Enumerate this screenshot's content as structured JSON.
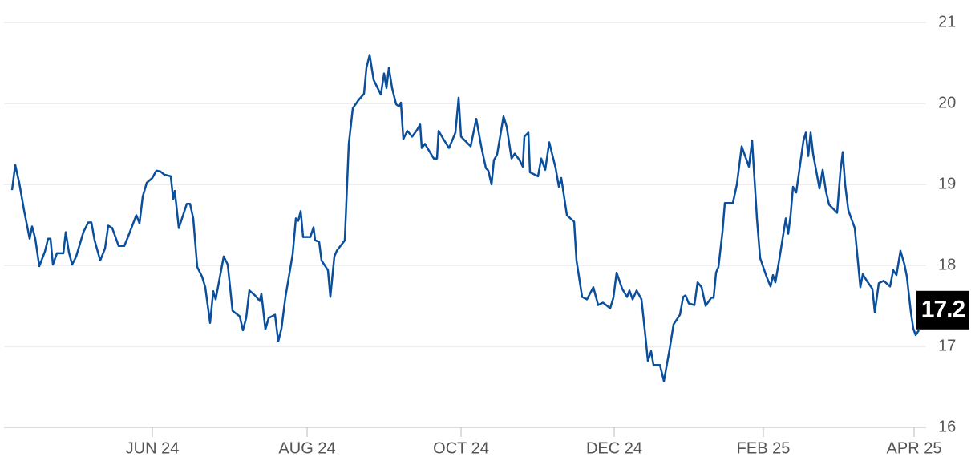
{
  "chart_data": {
    "type": "line",
    "x": [
      10,
      14,
      19,
      25,
      32,
      35,
      39,
      44,
      51,
      55,
      58,
      61,
      66,
      74,
      77,
      81,
      85,
      90,
      99,
      105,
      109,
      113,
      120,
      126,
      130,
      135,
      143,
      150,
      155,
      165,
      169,
      173,
      178,
      185,
      190,
      195,
      200,
      208,
      211,
      213,
      218,
      222,
      228,
      232,
      236,
      241,
      247,
      251,
      257,
      261,
      264,
      274,
      279,
      285,
      294,
      298,
      302,
      306,
      313,
      319,
      321,
      326,
      330,
      338,
      342,
      346,
      351,
      360,
      364,
      367,
      370,
      373,
      382,
      386,
      388,
      393,
      396,
      404,
      407,
      412,
      415,
      425,
      430,
      435,
      442,
      449,
      452,
      456,
      461,
      470,
      474,
      477,
      480,
      484,
      489,
      493,
      495,
      498,
      503,
      509,
      515,
      519,
      521,
      525,
      536,
      540,
      542,
      548,
      555,
      563,
      567,
      570,
      582,
      589,
      595,
      601,
      604,
      608,
      611,
      615,
      623,
      627,
      633,
      637,
      643,
      647,
      649,
      654,
      656,
      666,
      670,
      675,
      680,
      688,
      692,
      695,
      702,
      711,
      714,
      721,
      727,
      735,
      741,
      747,
      756,
      760,
      764,
      771,
      777,
      780,
      784,
      789,
      795,
      800,
      803,
      807,
      810,
      818,
      823,
      830,
      835,
      843,
      847,
      850,
      854,
      861,
      865,
      870,
      875,
      882,
      885,
      888,
      891,
      896,
      899,
      909,
      914,
      920,
      929,
      933,
      939,
      943,
      951,
      956,
      959,
      962,
      967,
      975,
      978,
      981,
      984,
      988,
      997,
      1000,
      1003,
      1006,
      1009,
      1017,
      1021,
      1025,
      1029,
      1039,
      1043,
      1046,
      1049,
      1053,
      1061,
      1068,
      1071,
      1076,
      1083,
      1086,
      1091,
      1097,
      1105,
      1109,
      1113,
      1118,
      1123,
      1126,
      1131,
      1134,
      1137,
      1141
    ],
    "series": [
      {
        "color": "#0b4f9c",
        "values": [
          18.93,
          19.24,
          19.02,
          18.68,
          18.33,
          18.48,
          18.33,
          17.99,
          18.17,
          18.33,
          18.33,
          18.01,
          18.15,
          18.15,
          18.41,
          18.16,
          18.01,
          18.11,
          18.41,
          18.53,
          18.53,
          18.31,
          18.06,
          18.21,
          18.49,
          18.46,
          18.24,
          18.24,
          18.36,
          18.62,
          18.52,
          18.85,
          19.02,
          19.08,
          19.17,
          19.16,
          19.12,
          19.1,
          18.82,
          18.92,
          18.46,
          18.58,
          18.76,
          18.76,
          18.58,
          17.98,
          17.86,
          17.73,
          17.29,
          17.68,
          17.58,
          18.11,
          18.01,
          17.44,
          17.37,
          17.2,
          17.35,
          17.69,
          17.63,
          17.56,
          17.65,
          17.21,
          17.35,
          17.39,
          17.06,
          17.22,
          17.61,
          18.14,
          18.58,
          18.55,
          18.67,
          18.35,
          18.35,
          18.47,
          18.31,
          18.29,
          18.06,
          17.94,
          17.61,
          18.11,
          18.18,
          18.31,
          19.5,
          19.94,
          20.04,
          20.12,
          20.44,
          20.6,
          20.29,
          20.11,
          20.37,
          20.19,
          20.44,
          20.19,
          19.99,
          19.96,
          20.01,
          19.56,
          19.66,
          19.59,
          19.67,
          19.74,
          19.45,
          19.5,
          19.32,
          19.32,
          19.66,
          19.56,
          19.45,
          19.64,
          20.07,
          19.59,
          19.47,
          19.81,
          19.48,
          19.2,
          19.17,
          19.0,
          19.3,
          19.37,
          19.84,
          19.71,
          19.32,
          19.38,
          19.3,
          19.22,
          19.59,
          19.64,
          19.15,
          19.1,
          19.32,
          19.18,
          19.52,
          19.2,
          18.97,
          19.08,
          18.62,
          18.54,
          18.06,
          17.61,
          17.58,
          17.73,
          17.51,
          17.54,
          17.47,
          17.6,
          17.91,
          17.71,
          17.61,
          17.69,
          17.58,
          17.69,
          17.58,
          17.12,
          16.82,
          16.94,
          16.77,
          16.77,
          16.57,
          16.96,
          17.27,
          17.39,
          17.61,
          17.63,
          17.53,
          17.51,
          17.79,
          17.73,
          17.5,
          17.6,
          17.6,
          17.91,
          17.98,
          18.41,
          18.77,
          18.77,
          19.0,
          19.47,
          19.22,
          19.54,
          18.58,
          18.09,
          17.86,
          17.74,
          17.88,
          17.79,
          18.08,
          18.58,
          18.39,
          18.62,
          18.97,
          18.9,
          19.54,
          19.64,
          19.35,
          19.64,
          19.38,
          18.95,
          19.18,
          18.92,
          18.75,
          18.65,
          19.15,
          19.4,
          19.0,
          18.68,
          18.46,
          17.73,
          17.89,
          17.81,
          17.71,
          17.42,
          17.78,
          17.81,
          17.74,
          17.94,
          17.88,
          18.18,
          18.01,
          17.86,
          17.42,
          17.22,
          17.14,
          17.2
        ]
      }
    ],
    "xlim": [
      0,
      1150
    ],
    "xticks": [
      {
        "value": 185,
        "label": "JUN 24"
      },
      {
        "value": 378,
        "label": "AUG 24"
      },
      {
        "value": 570,
        "label": "OCT 24"
      },
      {
        "value": 761,
        "label": "DEC 24"
      },
      {
        "value": 947,
        "label": "FEB 25"
      },
      {
        "value": 1135,
        "label": "APR 25"
      }
    ],
    "ylim": [
      16,
      21
    ],
    "yticks": [
      16,
      17,
      18,
      19,
      20,
      21
    ],
    "grid": true
  }
}
